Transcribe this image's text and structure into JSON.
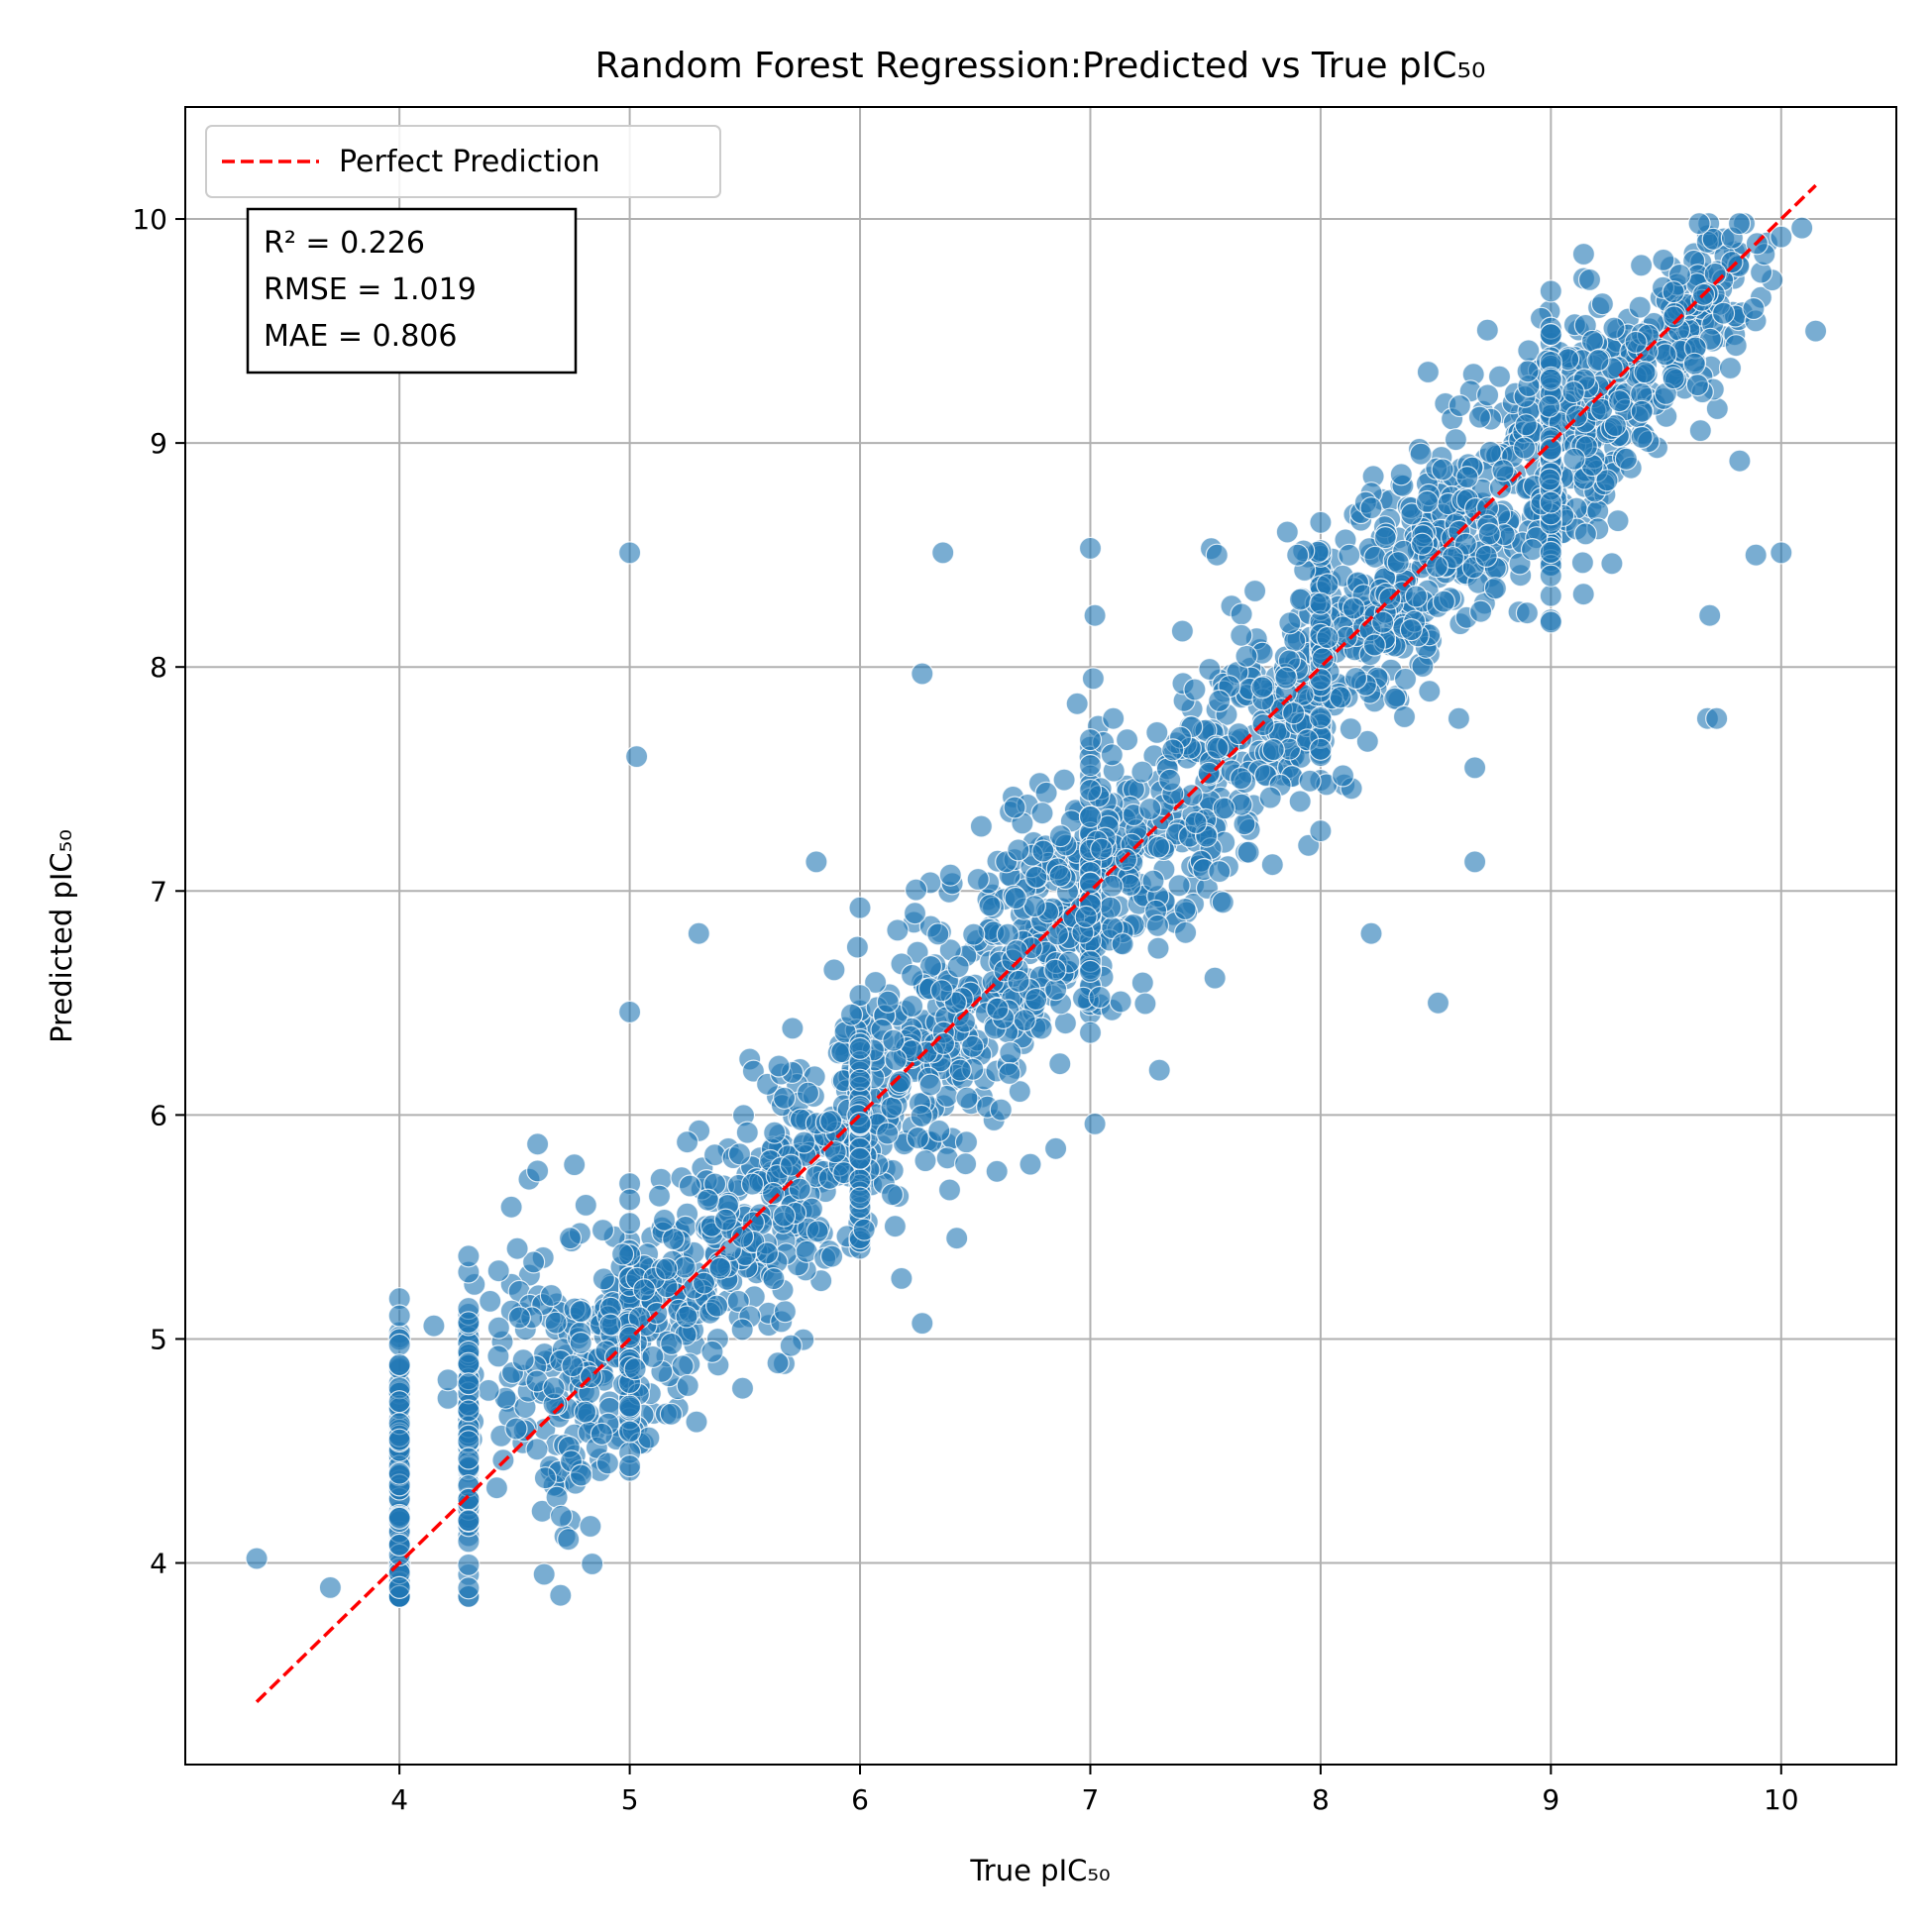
{
  "chart_data": {
    "type": "scatter",
    "title": "Random Forest Regression:Predicted vs True pIC₅₀",
    "xlabel": "True pIC₅₀",
    "ylabel": "Predicted pIC₅₀",
    "xlim": [
      3.07,
      10.5
    ],
    "ylim": [
      3.1,
      10.5
    ],
    "xticks": [
      4,
      5,
      6,
      7,
      8,
      9,
      10
    ],
    "yticks": [
      4,
      5,
      6,
      7,
      8,
      9,
      10
    ],
    "grid": true,
    "legend": {
      "placement": "top-left",
      "entries": [
        "Perfect Prediction"
      ]
    },
    "stats_box": {
      "lines": [
        "R² = 0.226",
        "RMSE = 1.019",
        "MAE = 0.806"
      ],
      "placement": "top-left"
    },
    "reference_line": {
      "name": "Perfect Prediction",
      "style": "dashed",
      "color": "#ff0000",
      "x": [
        3.38,
        10.15
      ],
      "y": [
        3.38,
        10.15
      ]
    },
    "series": [
      {
        "marker_color": "#1f77b4",
        "notable_points": [
          {
            "x": 3.38,
            "y": 4.02
          },
          {
            "x": 3.7,
            "y": 3.89
          },
          {
            "x": 4.0,
            "y": 3.89
          },
          {
            "x": 4.0,
            "y": 4.72
          },
          {
            "x": 4.0,
            "y": 4.55
          },
          {
            "x": 4.0,
            "y": 4.4
          },
          {
            "x": 4.0,
            "y": 4.2
          },
          {
            "x": 4.0,
            "y": 4.08
          },
          {
            "x": 4.3,
            "y": 5.37
          },
          {
            "x": 4.3,
            "y": 4.19
          },
          {
            "x": 4.3,
            "y": 4.8
          },
          {
            "x": 4.6,
            "y": 5.87
          },
          {
            "x": 4.6,
            "y": 5.75
          },
          {
            "x": 5.0,
            "y": 8.51
          },
          {
            "x": 5.03,
            "y": 7.6
          },
          {
            "x": 5.0,
            "y": 6.46
          },
          {
            "x": 5.29,
            "y": 4.63
          },
          {
            "x": 5.49,
            "y": 4.78
          },
          {
            "x": 6.36,
            "y": 8.51
          },
          {
            "x": 6.27,
            "y": 7.97
          },
          {
            "x": 6.27,
            "y": 5.07
          },
          {
            "x": 6.42,
            "y": 5.45
          },
          {
            "x": 7.0,
            "y": 8.53
          },
          {
            "x": 7.02,
            "y": 8.23
          },
          {
            "x": 7.02,
            "y": 5.96
          },
          {
            "x": 7.3,
            "y": 6.2
          },
          {
            "x": 8.22,
            "y": 6.81
          },
          {
            "x": 8.22,
            "y": 8.71
          },
          {
            "x": 8.51,
            "y": 6.5
          },
          {
            "x": 8.35,
            "y": 8.86
          },
          {
            "x": 8.9,
            "y": 9.32
          },
          {
            "x": 9.69,
            "y": 8.23
          },
          {
            "x": 9.68,
            "y": 7.77
          },
          {
            "x": 9.72,
            "y": 7.77
          },
          {
            "x": 9.89,
            "y": 8.5
          },
          {
            "x": 10.0,
            "y": 8.51
          },
          {
            "x": 10.15,
            "y": 9.5
          },
          {
            "x": 10.09,
            "y": 9.96
          },
          {
            "x": 10.0,
            "y": 9.92
          },
          {
            "x": 9.82,
            "y": 8.92
          },
          {
            "x": 9.88,
            "y": 9.6
          },
          {
            "x": 7.1,
            "y": 7.77
          },
          {
            "x": 7.4,
            "y": 8.16
          },
          {
            "x": 7.55,
            "y": 8.5
          },
          {
            "x": 7.9,
            "y": 8.5
          },
          {
            "x": 8.6,
            "y": 7.77
          },
          {
            "x": 8.67,
            "y": 7.13
          },
          {
            "x": 8.67,
            "y": 7.55
          },
          {
            "x": 6.85,
            "y": 5.85
          },
          {
            "x": 6.74,
            "y": 5.78
          },
          {
            "x": 5.7,
            "y": 4.97
          },
          {
            "x": 6.18,
            "y": 5.27
          },
          {
            "x": 5.81,
            "y": 7.13
          },
          {
            "x": 5.3,
            "y": 6.81
          }
        ],
        "trend": "points cluster tightly along y = x from about 4 to 10, with vertical strips at x = 4.0, 4.3, 4.6, 5.0, 9.0, 10.0"
      }
    ]
  }
}
